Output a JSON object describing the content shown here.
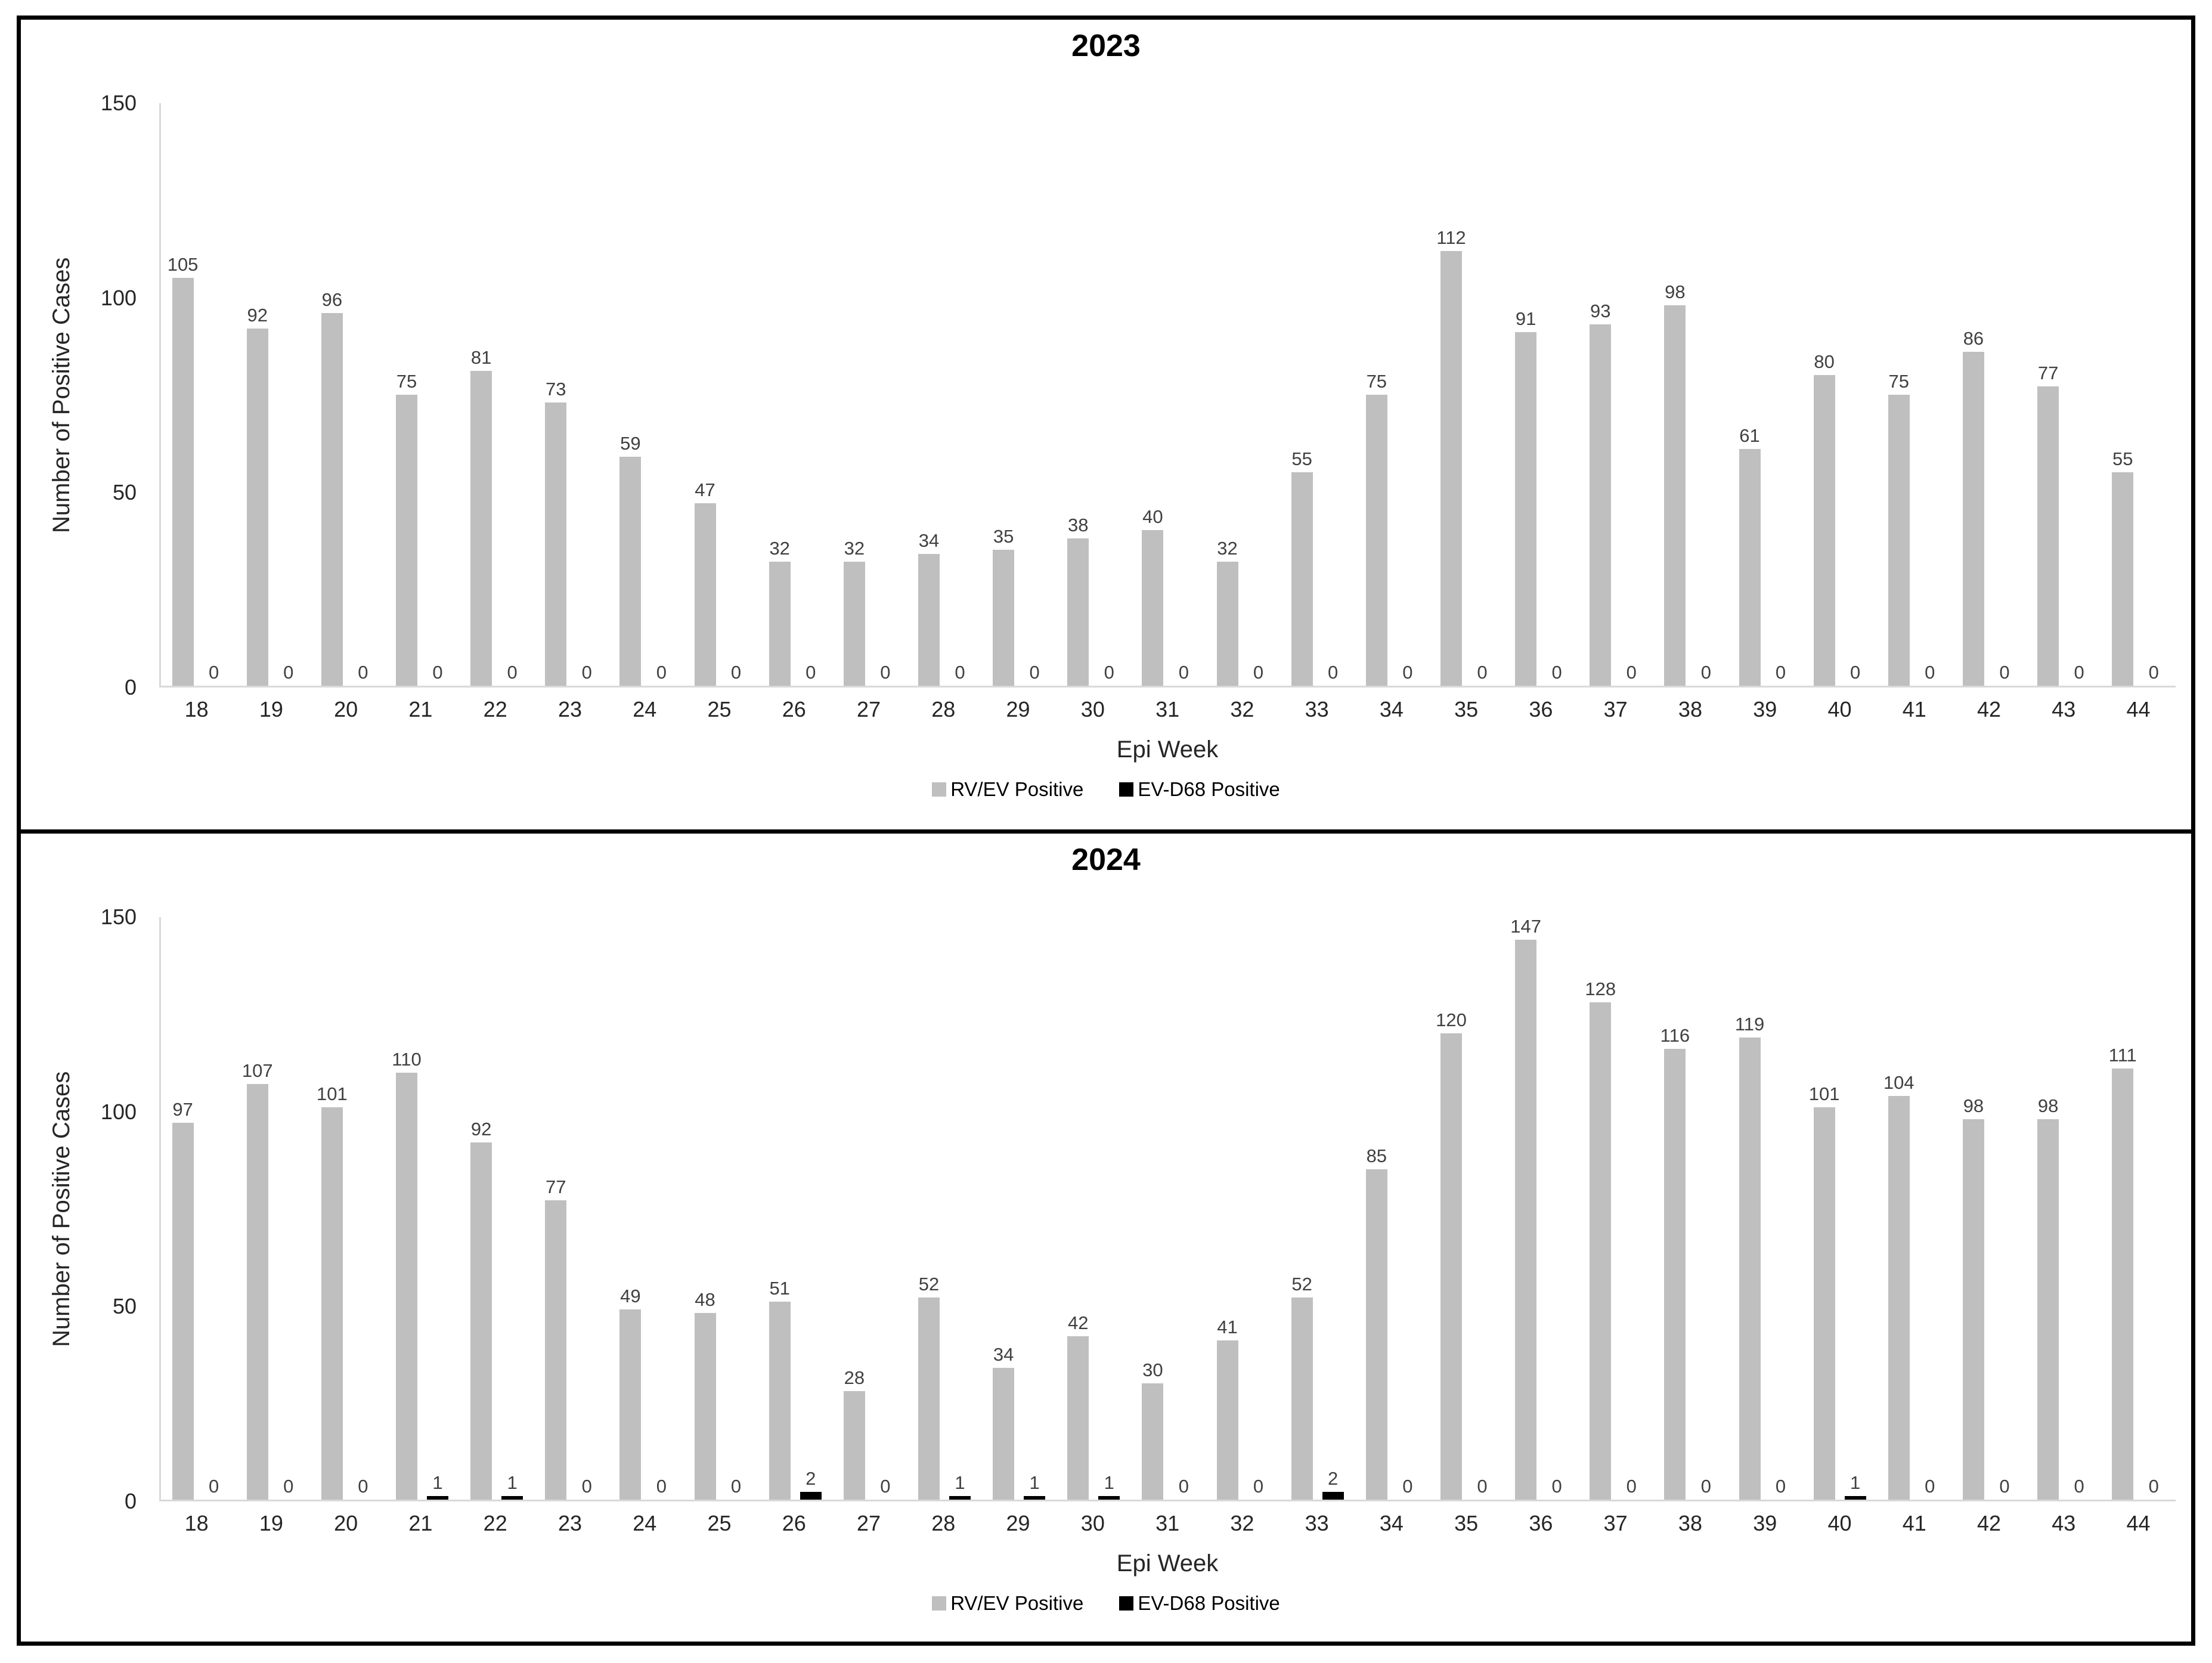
{
  "figure": {
    "background": "#ffffff",
    "panel_border_color": "#000000"
  },
  "colors": {
    "rv_ev_bar": "#bfbfbf",
    "ev_d68_bar": "#000000",
    "axis_line": "#d9d9d9",
    "value_label": "#404040",
    "tick_label": "#262626",
    "title": "#000000"
  },
  "chart_data": [
    {
      "type": "bar",
      "title": "2023",
      "xlabel": "Epi Week",
      "ylabel": "Number of Positive Cases",
      "ylim": [
        0,
        150
      ],
      "y_ticks": [
        150,
        100,
        50,
        0
      ],
      "grid": false,
      "legend_position": "bottom",
      "bar_labels": true,
      "categories": [
        18,
        19,
        20,
        21,
        22,
        23,
        24,
        25,
        26,
        27,
        28,
        29,
        30,
        31,
        32,
        33,
        34,
        35,
        36,
        37,
        38,
        39,
        40,
        41,
        42,
        43,
        44
      ],
      "series": [
        {
          "name": "RV/EV Positive",
          "color": "#bfbfbf",
          "values": [
            105,
            92,
            96,
            75,
            81,
            73,
            59,
            47,
            32,
            32,
            34,
            35,
            38,
            40,
            32,
            55,
            75,
            112,
            91,
            93,
            98,
            61,
            80,
            75,
            86,
            77,
            55
          ]
        },
        {
          "name": "EV-D68 Positive",
          "color": "#000000",
          "values": [
            0,
            0,
            0,
            0,
            0,
            0,
            0,
            0,
            0,
            0,
            0,
            0,
            0,
            0,
            0,
            0,
            0,
            0,
            0,
            0,
            0,
            0,
            0,
            0,
            0,
            0,
            0
          ]
        }
      ]
    },
    {
      "type": "bar",
      "title": "2024",
      "xlabel": "Epi Week",
      "ylabel": "Number of Positive Cases",
      "ylim": [
        0,
        150
      ],
      "y_ticks": [
        150,
        100,
        50,
        0
      ],
      "grid": false,
      "legend_position": "bottom",
      "bar_labels": true,
      "categories": [
        18,
        19,
        20,
        21,
        22,
        23,
        24,
        25,
        26,
        27,
        28,
        29,
        30,
        31,
        32,
        33,
        34,
        35,
        36,
        37,
        38,
        39,
        40,
        41,
        42,
        43,
        44
      ],
      "series": [
        {
          "name": "RV/EV Positive",
          "color": "#bfbfbf",
          "values": [
            97,
            107,
            101,
            110,
            92,
            77,
            49,
            48,
            51,
            28,
            52,
            34,
            42,
            30,
            41,
            52,
            85,
            120,
            147,
            128,
            116,
            119,
            101,
            104,
            98,
            98,
            111
          ]
        },
        {
          "name": "EV-D68 Positive",
          "color": "#000000",
          "values": [
            0,
            0,
            0,
            1,
            1,
            0,
            0,
            0,
            2,
            0,
            1,
            1,
            1,
            0,
            0,
            2,
            0,
            0,
            0,
            0,
            0,
            0,
            1,
            0,
            0,
            0,
            0
          ]
        }
      ]
    }
  ]
}
